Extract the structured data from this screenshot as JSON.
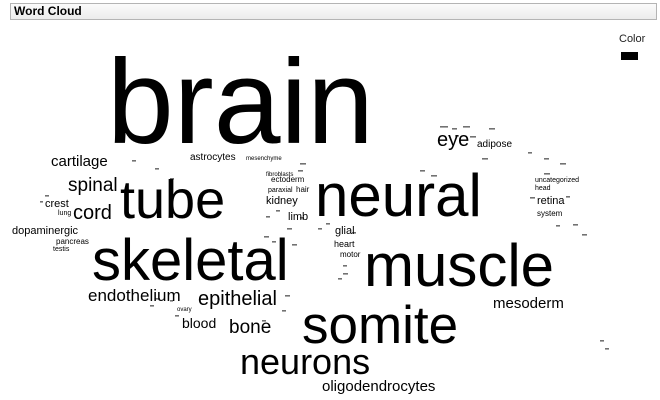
{
  "panel": {
    "title": "Word Cloud"
  },
  "legend": {
    "title": "Color",
    "swatch_color": "#000000"
  },
  "chart_data": {
    "type": "word-cloud",
    "ink_color": "#000000",
    "words": [
      {
        "text": "brain",
        "weight": 100
      },
      {
        "text": "neural",
        "weight": 49
      },
      {
        "text": "muscle",
        "weight": 46
      },
      {
        "text": "skeletal",
        "weight": 45
      },
      {
        "text": "tube",
        "weight": 42
      },
      {
        "text": "somite",
        "weight": 41
      },
      {
        "text": "neurons",
        "weight": 31
      },
      {
        "text": "cord",
        "weight": 16
      },
      {
        "text": "epithelial",
        "weight": 15
      },
      {
        "text": "eye",
        "weight": 15
      },
      {
        "text": "endothelium",
        "weight": 14
      },
      {
        "text": "bone",
        "weight": 14
      },
      {
        "text": "spinal",
        "weight": 14
      },
      {
        "text": "mesoderm",
        "weight": 12
      },
      {
        "text": "oligodendrocytes",
        "weight": 12
      },
      {
        "text": "cartilage",
        "weight": 12
      },
      {
        "text": "blood",
        "weight": 11
      },
      {
        "text": "retina",
        "weight": 9
      },
      {
        "text": "kidney",
        "weight": 8
      },
      {
        "text": "dopaminergic",
        "weight": 8
      },
      {
        "text": "crest",
        "weight": 8
      },
      {
        "text": "adipose",
        "weight": 8
      },
      {
        "text": "limb",
        "weight": 8
      },
      {
        "text": "astrocytes",
        "weight": 8
      },
      {
        "text": "glial",
        "weight": 7
      },
      {
        "text": "heart",
        "weight": 7
      },
      {
        "text": "pancreas",
        "weight": 6
      },
      {
        "text": "motor",
        "weight": 6
      },
      {
        "text": "system",
        "weight": 6
      },
      {
        "text": "hair",
        "weight": 6
      },
      {
        "text": "ectoderm",
        "weight": 6
      },
      {
        "text": "head",
        "weight": 5
      },
      {
        "text": "uncategorized",
        "weight": 5
      },
      {
        "text": "lung",
        "weight": 5
      },
      {
        "text": "paraxial",
        "weight": 5
      },
      {
        "text": "testis",
        "weight": 5
      },
      {
        "text": "fibroblasts",
        "weight": 5
      },
      {
        "text": "mesenchyme",
        "weight": 5
      },
      {
        "text": "ovary",
        "weight": 4
      }
    ]
  }
}
